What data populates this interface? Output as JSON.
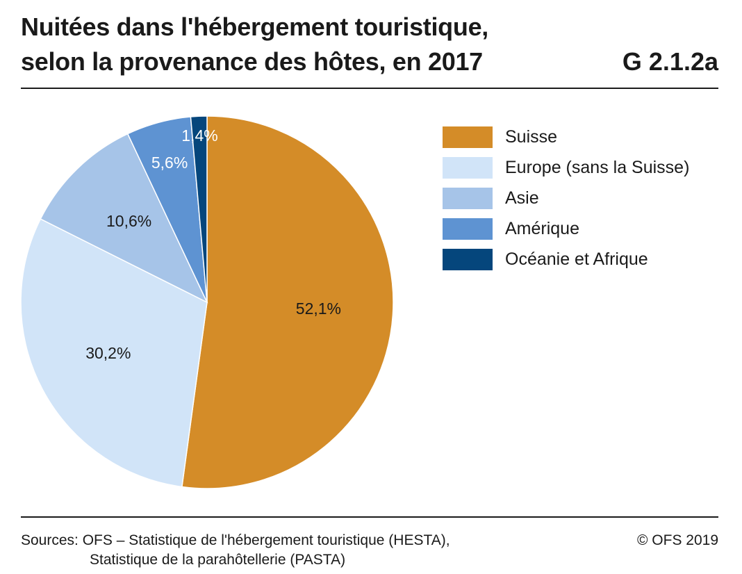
{
  "header": {
    "title_line1": "Nuitées dans l'hébergement touristique,",
    "title_line2": "selon la provenance des hôtes, en 2017",
    "code": "G 2.1.2a"
  },
  "footer": {
    "sources_line1": "Sources: OFS – Statistique de l'hébergement touristique (HESTA),",
    "sources_line2": "Statistique de la parahôtellerie (PASTA)",
    "copyright": "© OFS 2019"
  },
  "chart_data": {
    "type": "pie",
    "title": "Nuitées dans l'hébergement touristique, selon la provenance des hôtes, en 2017",
    "legend_position": "right",
    "slices": [
      {
        "label": "Suisse",
        "value": 52.1,
        "display": "52,1%",
        "color": "#d48c28",
        "text_color": "#1a1a1a"
      },
      {
        "label": "Europe (sans la Suisse)",
        "value": 30.2,
        "display": "30,2%",
        "color": "#d1e4f8",
        "text_color": "#1a1a1a"
      },
      {
        "label": "Asie",
        "value": 10.6,
        "display": "10,6%",
        "color": "#a6c4e8",
        "text_color": "#1a1a1a"
      },
      {
        "label": "Amérique",
        "value": 5.6,
        "display": "5,6%",
        "color": "#5e93d2",
        "text_color": "#ffffff"
      },
      {
        "label": "Océanie et Afrique",
        "value": 1.4,
        "display": "1,4%",
        "color": "#05467c",
        "text_color": "#ffffff"
      }
    ]
  }
}
